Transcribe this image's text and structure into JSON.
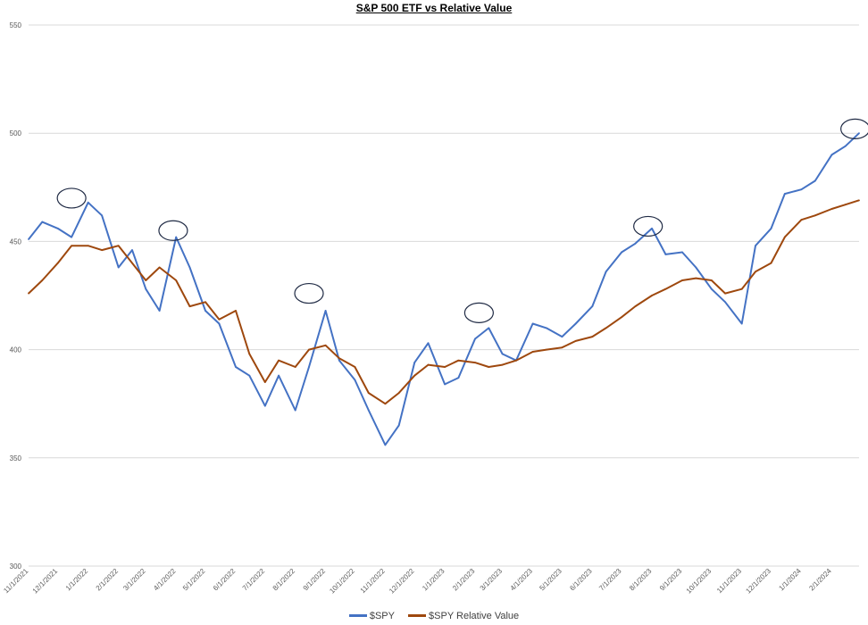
{
  "chart_data": {
    "type": "line",
    "title": "S&P 500 ETF vs Relative Value",
    "xlabel": "",
    "ylabel": "",
    "ylim": [
      300,
      550
    ],
    "yticks": [
      300,
      350,
      400,
      450,
      500,
      550
    ],
    "grid": true,
    "legend_position": "bottom",
    "x_tick_labels": [
      "11/1/2021",
      "12/1/2021",
      "1/1/2022",
      "2/1/2022",
      "3/1/2022",
      "4/1/2022",
      "5/1/2022",
      "6/1/2022",
      "7/1/2022",
      "8/1/2022",
      "9/1/2022",
      "10/1/2022",
      "11/1/2022",
      "12/1/2022",
      "1/1/2023",
      "2/1/2023",
      "3/1/2023",
      "4/1/2023",
      "5/1/2023",
      "6/1/2023",
      "7/1/2023",
      "8/1/2023",
      "9/1/2023",
      "10/1/2023",
      "11/1/2023",
      "12/1/2023",
      "1/1/2024",
      "2/1/2024"
    ],
    "x": [
      "11/1/2021",
      "11/15/2021",
      "12/1/2021",
      "12/15/2021",
      "1/1/2022",
      "1/15/2022",
      "2/1/2022",
      "2/15/2022",
      "3/1/2022",
      "3/15/2022",
      "4/1/2022",
      "4/15/2022",
      "5/1/2022",
      "5/15/2022",
      "6/1/2022",
      "6/15/2022",
      "7/1/2022",
      "7/15/2022",
      "8/1/2022",
      "8/15/2022",
      "9/1/2022",
      "9/15/2022",
      "10/1/2022",
      "10/15/2022",
      "11/1/2022",
      "11/15/2022",
      "12/1/2022",
      "12/15/2022",
      "1/1/2023",
      "1/15/2023",
      "2/1/2023",
      "2/15/2023",
      "3/1/2023",
      "3/15/2023",
      "4/1/2023",
      "4/15/2023",
      "5/1/2023",
      "5/15/2023",
      "6/1/2023",
      "6/15/2023",
      "7/1/2023",
      "7/15/2023",
      "8/1/2023",
      "8/15/2023",
      "9/1/2023",
      "9/15/2023",
      "10/1/2023",
      "10/15/2023",
      "11/1/2023",
      "11/15/2023",
      "12/1/2023",
      "12/15/2023",
      "1/1/2024",
      "1/15/2024",
      "2/1/2024",
      "2/15/2024",
      "2/29/2024"
    ],
    "series": [
      {
        "name": "$SPY",
        "color": "#4472C4",
        "values": [
          451,
          459,
          456,
          452,
          468,
          462,
          438,
          446,
          428,
          418,
          452,
          438,
          418,
          412,
          392,
          388,
          374,
          388,
          372,
          392,
          418,
          395,
          386,
          372,
          356,
          365,
          394,
          403,
          384,
          387,
          405,
          410,
          398,
          395,
          412,
          410,
          406,
          412,
          420,
          436,
          445,
          449,
          456,
          444,
          445,
          438,
          428,
          422,
          412,
          448,
          456,
          472,
          474,
          478,
          490,
          494,
          500
        ]
      },
      {
        "name": "$SPY Relative Value",
        "color": "#9E480E",
        "values": [
          426,
          432,
          440,
          448,
          448,
          446,
          448,
          440,
          432,
          438,
          432,
          420,
          422,
          414,
          418,
          398,
          385,
          395,
          392,
          400,
          402,
          396,
          392,
          380,
          375,
          380,
          388,
          393,
          392,
          395,
          394,
          392,
          393,
          395,
          399,
          400,
          401,
          404,
          406,
          410,
          415,
          420,
          425,
          428,
          432,
          433,
          432,
          426,
          428,
          436,
          440,
          452,
          460,
          462,
          465,
          467,
          469
        ]
      }
    ],
    "annotations": [
      {
        "type": "circle",
        "x": "12/15/2021",
        "y": 470
      },
      {
        "type": "circle",
        "x": "3/29/2022",
        "y": 455
      },
      {
        "type": "circle",
        "x": "8/15/2022",
        "y": 426
      },
      {
        "type": "circle",
        "x": "2/5/2023",
        "y": 417
      },
      {
        "type": "circle",
        "x": "7/28/2023",
        "y": 457
      },
      {
        "type": "circle",
        "x": "2/25/2024",
        "y": 502
      }
    ]
  }
}
